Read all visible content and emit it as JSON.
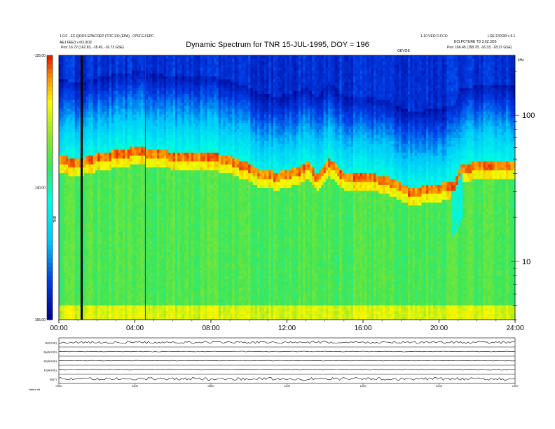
{
  "header": {
    "title": "Dynamic Spectrum for TNR 15-JUL-1995, DOY = 196",
    "left_line1": "1.0.0 - EC:QOO3 EPACOEP (TOC EO (EPA) - 075Z EJ EPC",
    "left_line2": "AEJ FEE3 v 0O.0OZ",
    "left_line3": "Pos:    16.72 (162.83, -18.49, -16.73 GSE)",
    "right_line1": "1.10 VEO D.FCO",
    "right_line2": "ECLPCTURE TD 3.0Z.3O5",
    "right_line3": "Pos:    166.45 (158.78, -16.33, -18.37 GSE)",
    "far_right": "LOE F/OOR v 5.1",
    "top_marker": "OEVOE",
    "unit": "kHz"
  },
  "colorbar": {
    "ticks": [
      "-125.00",
      "-140.00",
      "-155.00"
    ],
    "label": "TNR"
  },
  "footer": {
    "left_label": "Hetna   ott",
    "panel_labels": [
      "B(AGSE)",
      "By(AGSE)",
      "Bz(AGSE)",
      "Fz(AGSE)",
      "|B|(T)"
    ],
    "bottom_ticks": [
      "0000",
      "0400",
      "0800",
      "1200",
      "1600",
      "2000",
      "2400"
    ]
  },
  "chart_data": {
    "type": "heatmap",
    "title": "Dynamic Spectrum for TNR 15-JUL-1995, DOY = 196",
    "x_ticks": [
      "00:00",
      "04:00",
      "08:00",
      "12:00",
      "16:00",
      "20:00",
      "24:00"
    ],
    "x_range_hours": [
      0,
      24
    ],
    "y_scale": "log",
    "y_ticks": [
      "100",
      "10"
    ],
    "y_unit": "kHz",
    "y_range_khz": [
      4,
      256
    ],
    "color_scale": {
      "min": -155.0,
      "max": -125.0,
      "ticks": [
        -125.0,
        -140.0,
        -155.0
      ]
    },
    "plasma_line_khz": [
      {
        "t": 0.0,
        "f": 50
      },
      {
        "t": 1.0,
        "f": 47
      },
      {
        "t": 2.0,
        "f": 51
      },
      {
        "t": 3.0,
        "f": 54
      },
      {
        "t": 4.3,
        "f": 57
      },
      {
        "t": 5.0,
        "f": 54
      },
      {
        "t": 6.0,
        "f": 53
      },
      {
        "t": 7.0,
        "f": 53
      },
      {
        "t": 8.0,
        "f": 52
      },
      {
        "t": 9.0,
        "f": 49
      },
      {
        "t": 10.0,
        "f": 44
      },
      {
        "t": 10.5,
        "f": 40
      },
      {
        "t": 11.5,
        "f": 38
      },
      {
        "t": 12.5,
        "f": 41
      },
      {
        "t": 13.1,
        "f": 45
      },
      {
        "t": 13.6,
        "f": 37
      },
      {
        "t": 14.2,
        "f": 48
      },
      {
        "t": 15.0,
        "f": 38
      },
      {
        "t": 16.0,
        "f": 38
      },
      {
        "t": 17.2,
        "f": 36
      },
      {
        "t": 18.5,
        "f": 30
      },
      {
        "t": 19.5,
        "f": 31
      },
      {
        "t": 20.8,
        "f": 33
      },
      {
        "t": 21.2,
        "f": 43
      },
      {
        "t": 22.0,
        "f": 45
      },
      {
        "t": 24.0,
        "f": 45
      }
    ],
    "data_gaps_hours": [
      1.2,
      4.55
    ],
    "footer_series": [
      {
        "name": "B(AGSE)",
        "level": 0.5,
        "noise": 0.25
      },
      {
        "name": "By(AGSE)",
        "level": 0.5,
        "noise": 0.08
      },
      {
        "name": "Bz(AGSE)",
        "level": 0.5,
        "noise": 0.06
      },
      {
        "name": "Fz(AGSE)",
        "level": 0.5,
        "noise": 0.06
      },
      {
        "name": "|B|(T)",
        "level": 0.5,
        "noise": 0.3
      }
    ]
  }
}
